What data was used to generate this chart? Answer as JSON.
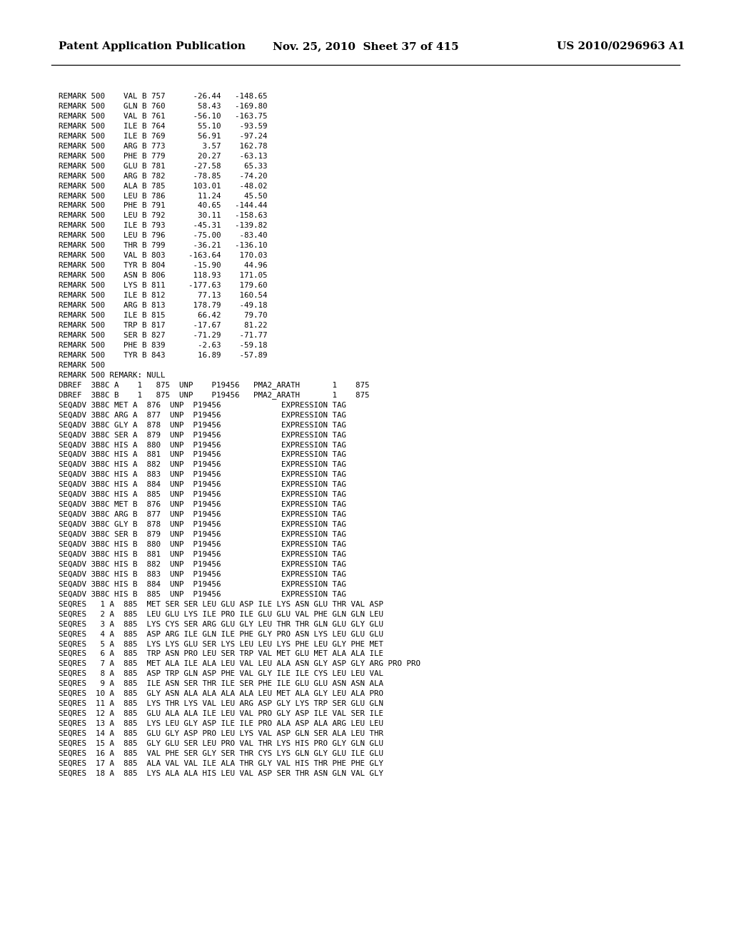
{
  "header_left": "Patent Application Publication",
  "header_mid": "Nov. 25, 2010  Sheet 37 of 415",
  "header_right": "US 2010/0296963 A1",
  "bg_color": "#ffffff",
  "text_color": "#000000",
  "header_font_size": 11.0,
  "body_font_size": 7.8,
  "body_lines": [
    "REMARK 500    VAL B 757      -26.44   -148.65",
    "REMARK 500    GLN B 760       58.43   -169.80",
    "REMARK 500    VAL B 761      -56.10   -163.75",
    "REMARK 500    ILE B 764       55.10    -93.59",
    "REMARK 500    ILE B 769       56.91    -97.24",
    "REMARK 500    ARG B 773        3.57    162.78",
    "REMARK 500    PHE B 779       20.27    -63.13",
    "REMARK 500    GLU B 781      -27.58     65.33",
    "REMARK 500    ARG B 782      -78.85    -74.20",
    "REMARK 500    ALA B 785      103.01    -48.02",
    "REMARK 500    LEU B 786       11.24     45.50",
    "REMARK 500    PHE B 791       40.65   -144.44",
    "REMARK 500    LEU B 792       30.11   -158.63",
    "REMARK 500    ILE B 793      -45.31   -139.82",
    "REMARK 500    LEU B 796      -75.00    -83.40",
    "REMARK 500    THR B 799      -36.21   -136.10",
    "REMARK 500    VAL B 803     -163.64    170.03",
    "REMARK 500    TYR B 804      -15.90     44.96",
    "REMARK 500    ASN B 806      118.93    171.05",
    "REMARK 500    LYS B 811     -177.63    179.60",
    "REMARK 500    ILE B 812       77.13    160.54",
    "REMARK 500    ARG B 813      178.79    -49.18",
    "REMARK 500    ILE B 815       66.42     79.70",
    "REMARK 500    TRP B 817      -17.67     81.22",
    "REMARK 500    SER B 827      -71.29    -71.77",
    "REMARK 500    PHE B 839       -2.63    -59.18",
    "REMARK 500    TYR B 843       16.89    -57.89",
    "REMARK 500",
    "REMARK 500 REMARK: NULL",
    "DBREF  3B8C A    1   875  UNP    P19456   PMA2_ARATH       1    875",
    "DBREF  3B8C B    1   875  UNP    P19456   PMA2_ARATH       1    875",
    "SEQADV 3B8C MET A  876  UNP  P19456             EXPRESSION TAG",
    "SEQADV 3B8C ARG A  877  UNP  P19456             EXPRESSION TAG",
    "SEQADV 3B8C GLY A  878  UNP  P19456             EXPRESSION TAG",
    "SEQADV 3B8C SER A  879  UNP  P19456             EXPRESSION TAG",
    "SEQADV 3B8C HIS A  880  UNP  P19456             EXPRESSION TAG",
    "SEQADV 3B8C HIS A  881  UNP  P19456             EXPRESSION TAG",
    "SEQADV 3B8C HIS A  882  UNP  P19456             EXPRESSION TAG",
    "SEQADV 3B8C HIS A  883  UNP  P19456             EXPRESSION TAG",
    "SEQADV 3B8C HIS A  884  UNP  P19456             EXPRESSION TAG",
    "SEQADV 3B8C HIS A  885  UNP  P19456             EXPRESSION TAG",
    "SEQADV 3B8C MET B  876  UNP  P19456             EXPRESSION TAG",
    "SEQADV 3B8C ARG B  877  UNP  P19456             EXPRESSION TAG",
    "SEQADV 3B8C GLY B  878  UNP  P19456             EXPRESSION TAG",
    "SEQADV 3B8C SER B  879  UNP  P19456             EXPRESSION TAG",
    "SEQADV 3B8C HIS B  880  UNP  P19456             EXPRESSION TAG",
    "SEQADV 3B8C HIS B  881  UNP  P19456             EXPRESSION TAG",
    "SEQADV 3B8C HIS B  882  UNP  P19456             EXPRESSION TAG",
    "SEQADV 3B8C HIS B  883  UNP  P19456             EXPRESSION TAG",
    "SEQADV 3B8C HIS B  884  UNP  P19456             EXPRESSION TAG",
    "SEQADV 3B8C HIS B  885  UNP  P19456             EXPRESSION TAG",
    "SEQRES   1 A  885  MET SER SER LEU GLU ASP ILE LYS ASN GLU THR VAL ASP",
    "SEQRES   2 A  885  LEU GLU LYS ILE PRO ILE GLU GLU VAL PHE GLN GLN LEU",
    "SEQRES   3 A  885  LYS CYS SER ARG GLU GLY LEU THR THR GLN GLU GLY GLU",
    "SEQRES   4 A  885  ASP ARG ILE GLN ILE PHE GLY PRO ASN LYS LEU GLU GLU",
    "SEQRES   5 A  885  LYS LYS GLU SER LYS LEU LEU LYS PHE LEU GLY PHE MET",
    "SEQRES   6 A  885  TRP ASN PRO LEU SER TRP VAL MET GLU MET ALA ALA ILE",
    "SEQRES   7 A  885  MET ALA ILE ALA LEU VAL LEU ALA ASN GLY ASP GLY ARG PRO PRO",
    "SEQRES   8 A  885  ASP TRP GLN ASP PHE VAL GLY ILE ILE CYS LEU LEU VAL",
    "SEQRES   9 A  885  ILE ASN SER THR ILE SER PHE ILE GLU GLU ASN ASN ALA",
    "SEQRES  10 A  885  GLY ASN ALA ALA ALA ALA LEU MET ALA GLY LEU ALA PRO",
    "SEQRES  11 A  885  LYS THR LYS VAL LEU ARG ASP GLY LYS TRP SER GLU GLN",
    "SEQRES  12 A  885  GLU ALA ALA ILE LEU VAL PRO GLY ASP ILE VAL SER ILE",
    "SEQRES  13 A  885  LYS LEU GLY ASP ILE ILE PRO ALA ASP ALA ARG LEU LEU",
    "SEQRES  14 A  885  GLU GLY ASP PRO LEU LYS VAL ASP GLN SER ALA LEU THR",
    "SEQRES  15 A  885  GLY GLU SER LEU PRO VAL THR LYS HIS PRO GLY GLN GLU",
    "SEQRES  16 A  885  VAL PHE SER GLY SER THR CYS LYS GLN GLY GLU ILE GLU",
    "SEQRES  17 A  885  ALA VAL VAL ILE ALA THR GLY VAL HIS THR PHE PHE GLY",
    "SEQRES  18 A  885  LYS ALA ALA HIS LEU VAL ASP SER THR ASN GLN VAL GLY"
  ]
}
